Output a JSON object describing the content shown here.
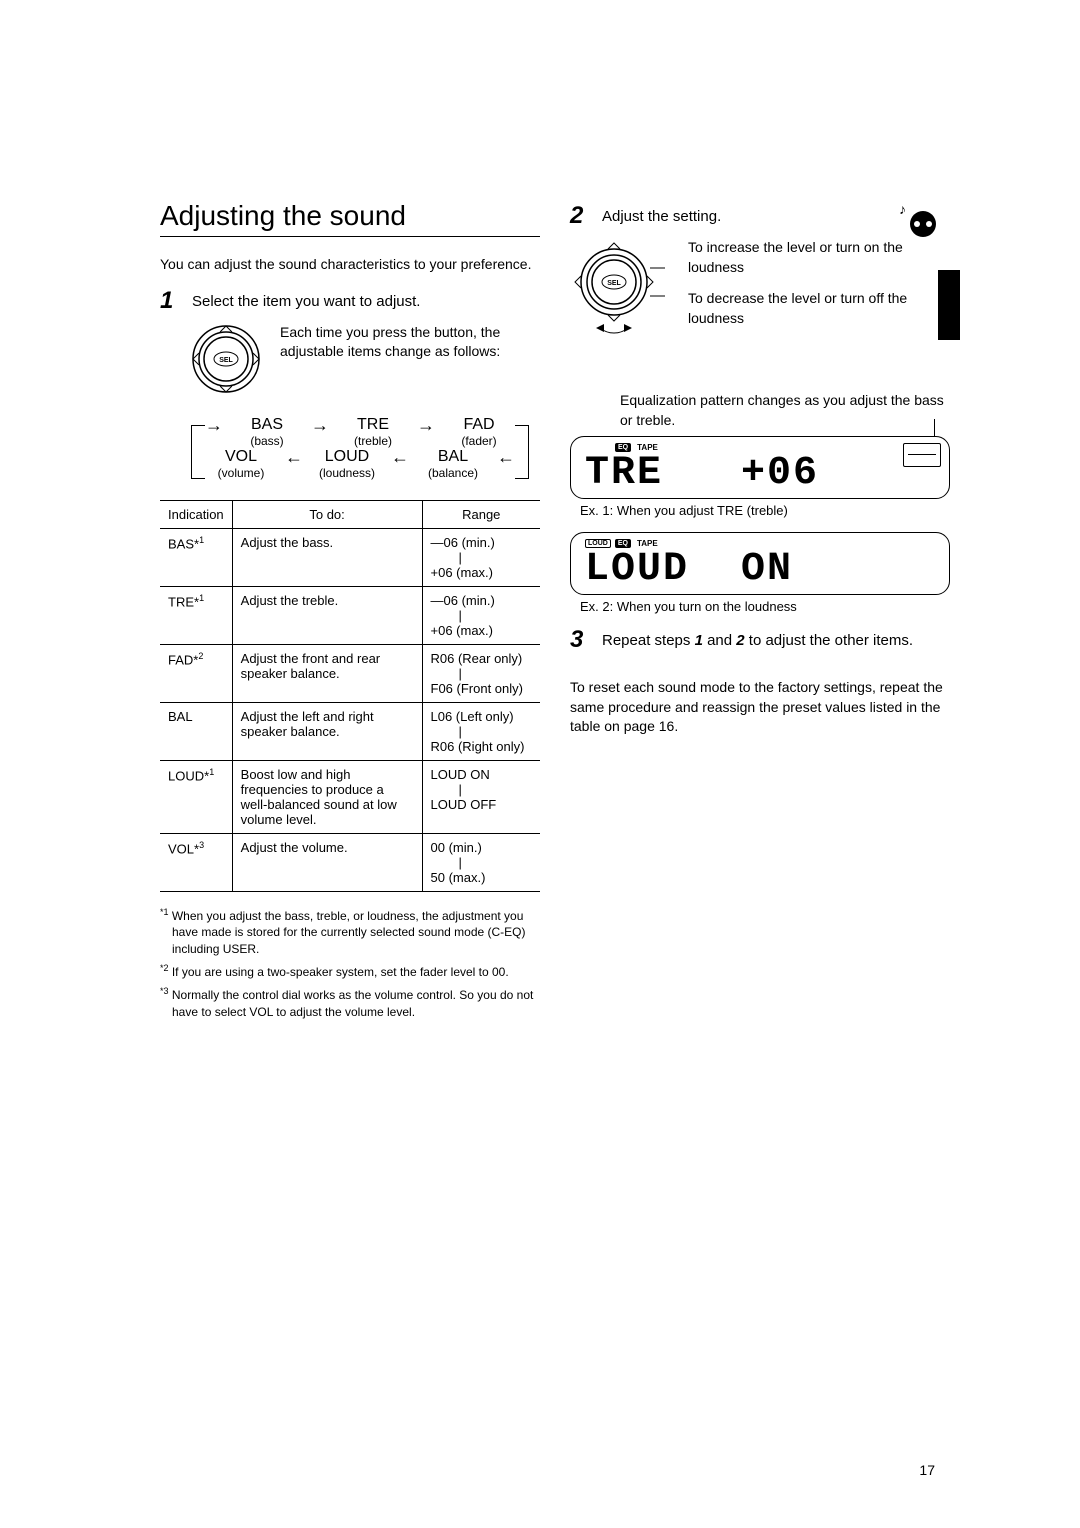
{
  "page_number": "17",
  "section_title": "Adjusting the sound",
  "intro": "You can adjust the sound characteristics to your preference.",
  "step1": {
    "num": "1",
    "text": "Select the item you want to adjust.",
    "dial_text": "Each time you press the button, the adjustable items change as follows:"
  },
  "flow": {
    "row1": [
      {
        "abbr": "BAS",
        "desc": "(bass)"
      },
      {
        "abbr": "TRE",
        "desc": "(treble)"
      },
      {
        "abbr": "FAD",
        "desc": "(fader)"
      }
    ],
    "row2": [
      {
        "abbr": "VOL",
        "desc": "(volume)"
      },
      {
        "abbr": "LOUD",
        "desc": "(loudness)"
      },
      {
        "abbr": "BAL",
        "desc": "(balance)"
      }
    ]
  },
  "table": {
    "headers": [
      "Indication",
      "To do:",
      "Range"
    ],
    "rows": [
      {
        "ind": "BAS*",
        "sup": "1",
        "todo": "Adjust the bass.",
        "range": "—06 (min.)\n|\n+06 (max.)"
      },
      {
        "ind": "TRE*",
        "sup": "1",
        "todo": "Adjust the treble.",
        "range": "—06 (min.)\n|\n+06 (max.)"
      },
      {
        "ind": "FAD*",
        "sup": "2",
        "todo": "Adjust the front and rear speaker balance.",
        "range": "R06 (Rear only)\n|\nF06 (Front only)"
      },
      {
        "ind": "BAL",
        "sup": "",
        "todo": "Adjust the left and right speaker balance.",
        "range": "L06 (Left only)\n|\nR06 (Right only)"
      },
      {
        "ind": "LOUD*",
        "sup": "1",
        "todo": "Boost low and high frequencies to produce a well-balanced sound at low volume level.",
        "range": "\nLOUD ON\n|\nLOUD OFF"
      },
      {
        "ind": "VOL*",
        "sup": "3",
        "todo": "Adjust the volume.",
        "range": "00 (min.)\n|\n50 (max.)"
      }
    ]
  },
  "footnotes": {
    "f1": "*1 When you adjust the bass, treble, or loudness, the adjustment you have made is stored for the currently selected sound mode (C-EQ) including  USER.",
    "f2": "*2 If you are using a two-speaker system, set the fader level to  00.",
    "f3": "*3 Normally the control dial works as the volume control. So you do not have to select  VOL  to adjust the volume level."
  },
  "step2": {
    "num": "2",
    "text": "Adjust the setting.",
    "action_up": "To increase the level or turn on the loudness",
    "action_down": "To decrease the level or turn off the loudness",
    "eq_note": "Equalization pattern changes as you adjust the bass or treble."
  },
  "lcd1": {
    "tags_eq": "EQ",
    "tags_tape": "TAPE",
    "segment": "TRE   +06",
    "caption": "Ex. 1:  When you adjust  TRE  (treble)"
  },
  "lcd2": {
    "tags_loud": "LOUD",
    "tags_eq": "EQ",
    "tags_tape": "TAPE",
    "segment": "LOUD  ON",
    "caption": "Ex. 2:  When you turn on the loudness"
  },
  "step3": {
    "num": "3",
    "text": "Repeat steps  1  and  2  to adjust the other items."
  },
  "reset_note": "To reset each sound mode to the factory settings,  repeat the same procedure and reassign the preset values listed in the table on page 16."
}
